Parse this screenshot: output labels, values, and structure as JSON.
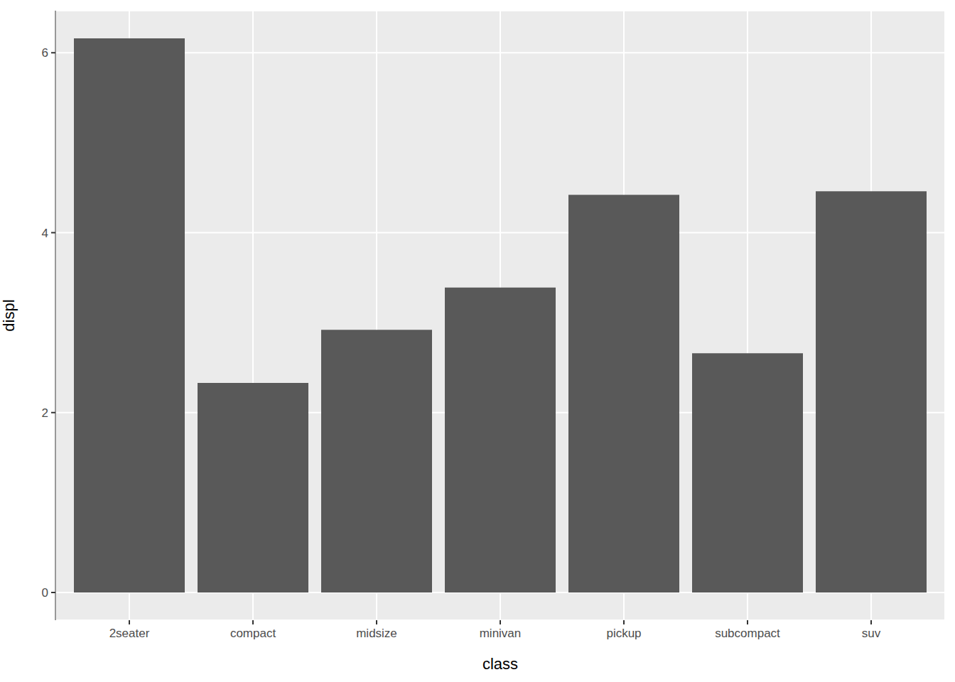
{
  "chart_data": {
    "type": "bar",
    "categories": [
      "2seater",
      "compact",
      "midsize",
      "minivan",
      "pickup",
      "subcompact",
      "suv"
    ],
    "values": [
      6.16,
      2.33,
      2.92,
      3.39,
      4.42,
      2.66,
      4.46
    ],
    "color": "#595959",
    "xlabel": "class",
    "ylabel": "displ",
    "ylim": [
      -0.308,
      6.468
    ],
    "yticks": [
      0,
      2,
      4,
      6
    ],
    "grid": true
  }
}
